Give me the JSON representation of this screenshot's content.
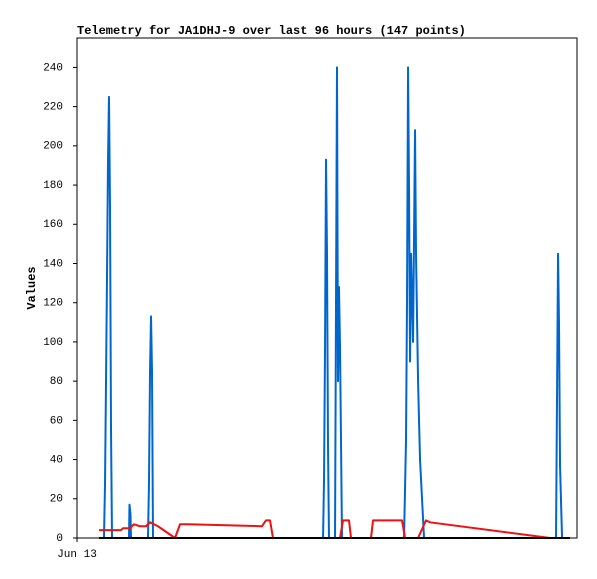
{
  "chart_data": {
    "type": "line",
    "title": "Telemetry for JA1DHJ-9 over last 96 hours (147 points)",
    "y_label": "Values",
    "xlim": [
      0,
      96
    ],
    "xticks": [
      {
        "value": 0,
        "label": "Jun 13"
      }
    ],
    "ylim": [
      0,
      255
    ],
    "yticks": [
      0,
      20,
      40,
      60,
      80,
      100,
      120,
      140,
      160,
      180,
      200,
      220,
      240
    ],
    "series": [
      {
        "color": "#0066cc",
        "x": [
          5.18,
          5.38,
          5.57,
          5.76,
          5.95,
          6.14,
          6.34,
          6.53,
          6.72,
          9.98,
          10.08,
          10.27,
          10.37,
          13.63,
          13.82,
          14.02,
          14.21,
          14.4,
          14.59,
          47.24,
          47.43,
          47.62,
          47.81,
          48.0,
          48.19,
          48.38,
          49.54,
          49.73,
          49.92,
          50.11,
          50.3,
          50.5,
          50.88,
          62.79,
          62.98,
          63.17,
          63.36,
          63.56,
          63.75,
          63.94,
          64.13,
          64.52,
          64.9,
          65.09,
          65.48,
          65.86,
          66.63,
          91.97,
          92.16,
          92.36,
          92.55,
          92.74,
          93.13
        ],
        "values": [
          0,
          28,
          80,
          133,
          192,
          225,
          168,
          55,
          0,
          0,
          17,
          12,
          0,
          0,
          28,
          85,
          113,
          85,
          0,
          0,
          30,
          97,
          193,
          145,
          48,
          0,
          0,
          120,
          240,
          80,
          128,
          98,
          0,
          0,
          25,
          50,
          120,
          240,
          177,
          90,
          145,
          100,
          208,
          145,
          80,
          40,
          0,
          0,
          70,
          145,
          108,
          37,
          0
        ]
      },
      {
        "color": "#ee1111",
        "x": [
          4.22,
          8.45,
          8.83,
          10.18,
          10.94,
          12.1,
          13.25,
          14.02,
          15.55,
          18.82,
          19.78,
          21.31,
          35.52,
          36.29,
          37.06,
          37.63,
          50.5,
          51.08,
          52.23,
          52.61,
          56.45,
          56.84,
          62.4,
          62.98,
          65.48,
          67.01,
          67.78,
          90.82,
          94.66
        ],
        "values": [
          4,
          4,
          5,
          5,
          7,
          6,
          6,
          8,
          6,
          0,
          7,
          7,
          6,
          9,
          9,
          0,
          0,
          9,
          9,
          0,
          0,
          9,
          9,
          0,
          0,
          9,
          8,
          0,
          0
        ]
      },
      {
        "color": "#000000",
        "x": [
          4.22,
          94.66
        ],
        "values": [
          0,
          0
        ]
      }
    ]
  }
}
